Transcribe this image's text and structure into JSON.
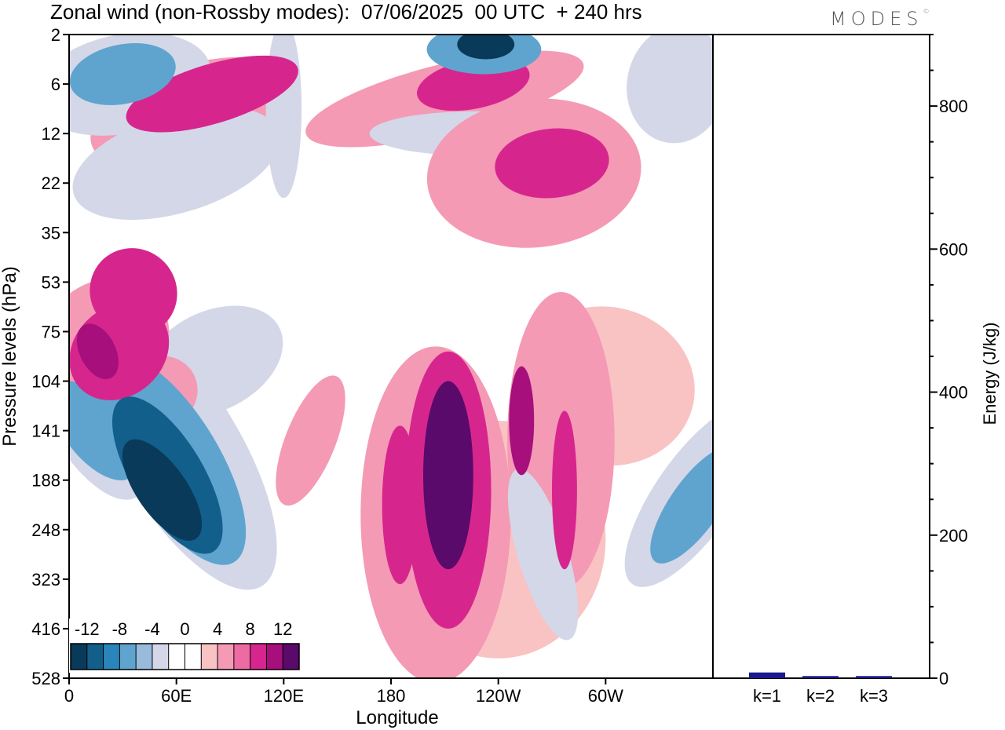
{
  "header": {
    "title": "Zonal wind (non-Rossby modes):  07/06/2025  00 UTC  + 240 hrs",
    "brand": "MODES",
    "brand_mark": "©"
  },
  "chart_data": [
    {
      "type": "heatmap",
      "title": "Zonal wind (non-Rossby modes):  07/06/2025  00 UTC  + 240 hrs",
      "xlabel": "Longitude",
      "ylabel": "Pressure levels (hPa)",
      "x_ticks": [
        "0",
        "60E",
        "120E",
        "180",
        "120W",
        "60W"
      ],
      "x_tick_positions_deg": [
        0,
        60,
        120,
        180,
        240,
        300
      ],
      "xlim": [
        0,
        360
      ],
      "y_ticks": [
        "2",
        "6",
        "12",
        "22",
        "35",
        "53",
        "75",
        "104",
        "141",
        "188",
        "248",
        "323",
        "416",
        "528"
      ],
      "y_scale": "level-index",
      "colorbar": {
        "labels": [
          "-12",
          "-8",
          "-4",
          "0",
          "4",
          "8",
          "12"
        ],
        "label_positions": [
          -12,
          -8,
          -4,
          0,
          4,
          8,
          12
        ],
        "range": [
          -14,
          14
        ],
        "step": 2,
        "colors": [
          "#0a3a5a",
          "#125f8c",
          "#2a86ba",
          "#5fa4cf",
          "#98bbdc",
          "#d3d7e8",
          "#ffffff",
          "#ffffff",
          "#f9c3c3",
          "#f49ab5",
          "#ee6aa3",
          "#d6268e",
          "#a60f7c",
          "#5a0a6a"
        ],
        "placement": "bottom-left inside"
      },
      "blobs": [
        {
          "lon": 52,
          "lev": 9.2,
          "value": -14,
          "rx": 14,
          "ry": 1.2,
          "tilt": 0.7
        },
        {
          "lon": 55,
          "lev": 8.9,
          "value": -12,
          "rx": 20,
          "ry": 1.8,
          "tilt": 0.6
        },
        {
          "lon": 58,
          "lev": 8.6,
          "value": -8,
          "rx": 26,
          "ry": 2.4,
          "tilt": 0.6
        },
        {
          "lon": 62,
          "lev": 8.4,
          "value": -4,
          "rx": 34,
          "ry": 3.2,
          "tilt": 0.6
        },
        {
          "lon": 80,
          "lev": 8.4,
          "value": -2,
          "rx": 14,
          "ry": 5.2,
          "tilt": 0.3
        },
        {
          "lon": 14,
          "lev": 8.0,
          "value": -8,
          "rx": 16,
          "ry": 1.2,
          "tilt": 0.8
        },
        {
          "lon": 12,
          "lev": 7.8,
          "value": -4,
          "rx": 22,
          "ry": 1.8,
          "tilt": 0.6
        },
        {
          "lon": 80,
          "lev": 6.6,
          "value": -4,
          "rx": 42,
          "ry": 1.0,
          "tilt": 0.5
        },
        {
          "lon": 28,
          "lev": 6.4,
          "value": 8,
          "rx": 30,
          "ry": 0.9,
          "tilt": 0.9
        },
        {
          "lon": 16,
          "lev": 6.4,
          "value": 10,
          "rx": 10,
          "ry": 0.6,
          "tilt": 0.5
        },
        {
          "lon": 52,
          "lev": 7.2,
          "value": 4,
          "rx": 20,
          "ry": 0.7,
          "tilt": 0.6
        },
        {
          "lon": 130,
          "lev": 6.4,
          "value": -2,
          "rx": 30,
          "ry": 1.0,
          "tilt": 0.2
        },
        {
          "lon": 214,
          "lev": 8.8,
          "value": 14,
          "rx": 8,
          "ry": 1.2,
          "tilt": 0
        },
        {
          "lon": 212,
          "lev": 8.9,
          "value": 12,
          "rx": 14,
          "ry": 1.9,
          "tilt": 0
        },
        {
          "lon": 212,
          "lev": 9.2,
          "value": 8,
          "rx": 24,
          "ry": 2.8,
          "tilt": 0
        },
        {
          "lon": 205,
          "lev": 9.7,
          "value": 4,
          "rx": 42,
          "ry": 3.4,
          "tilt": 0
        },
        {
          "lon": 185,
          "lev": 9.5,
          "value": 8,
          "rx": 10,
          "ry": 1.6,
          "tilt": 0
        },
        {
          "lon": 253,
          "lev": 7.8,
          "value": 10,
          "rx": 7,
          "ry": 1.1,
          "tilt": 0
        },
        {
          "lon": 277,
          "lev": 9.2,
          "value": 8,
          "rx": 7,
          "ry": 1.6,
          "tilt": 0
        },
        {
          "lon": 275,
          "lev": 8.2,
          "value": 4,
          "rx": 30,
          "ry": 3.0,
          "tilt": 0
        },
        {
          "lon": 240,
          "lev": 10.2,
          "value": 2,
          "rx": 60,
          "ry": 2.4,
          "tilt": 0
        },
        {
          "lon": 135,
          "lev": 8.2,
          "value": 4,
          "rx": 14,
          "ry": 1.4,
          "tilt": -0.4
        },
        {
          "lon": 300,
          "lev": 7.1,
          "value": 2,
          "rx": 50,
          "ry": 1.6,
          "tilt": -0.2
        },
        {
          "lon": 350,
          "lev": 9.5,
          "value": -8,
          "rx": 14,
          "ry": 1.4,
          "tilt": -0.7
        },
        {
          "lon": 350,
          "lev": 9.3,
          "value": -4,
          "rx": 22,
          "ry": 2.2,
          "tilt": -0.7
        },
        {
          "lon": 265,
          "lev": 10.5,
          "value": -4,
          "rx": 14,
          "ry": 1.8,
          "tilt": 0.3
        },
        {
          "lon": 36,
          "lev": 5.2,
          "value": 8,
          "rx": 24,
          "ry": 0.9,
          "tilt": 0.9
        },
        {
          "lon": 20,
          "lev": 6.2,
          "value": 4,
          "rx": 38,
          "ry": 1.2,
          "tilt": 0.9
        },
        {
          "lon": 226,
          "lev": 1.0,
          "value": 8,
          "rx": 32,
          "ry": 0.5,
          "tilt": 0.2
        },
        {
          "lon": 210,
          "lev": 1.3,
          "value": 4,
          "rx": 80,
          "ry": 0.7,
          "tilt": 0.25
        },
        {
          "lon": 233,
          "lev": 0.2,
          "value": -14,
          "rx": 16,
          "ry": 0.3,
          "tilt": 0
        },
        {
          "lon": 232,
          "lev": 0.3,
          "value": -8,
          "rx": 32,
          "ry": 0.5,
          "tilt": 0
        },
        {
          "lon": 228,
          "lev": 2.0,
          "value": -4,
          "rx": 60,
          "ry": 0.45,
          "tilt": 0
        },
        {
          "lon": 260,
          "lev": 2.8,
          "value": 4,
          "rx": 60,
          "ry": 1.5,
          "tilt": 0.1
        },
        {
          "lon": 270,
          "lev": 2.6,
          "value": 8,
          "rx": 32,
          "ry": 0.7,
          "tilt": 0.1
        },
        {
          "lon": 80,
          "lev": 1.2,
          "value": 8,
          "rx": 50,
          "ry": 0.6,
          "tilt": 0.3
        },
        {
          "lon": 70,
          "lev": 1.6,
          "value": 4,
          "rx": 60,
          "ry": 1.0,
          "tilt": 0.3
        },
        {
          "lon": 30,
          "lev": 0.8,
          "value": -8,
          "rx": 30,
          "ry": 0.6,
          "tilt": 0.2
        },
        {
          "lon": 30,
          "lev": 1.0,
          "value": -4,
          "rx": 50,
          "ry": 1.0,
          "tilt": 0.2
        },
        {
          "lon": 60,
          "lev": 2.6,
          "value": -4,
          "rx": 60,
          "ry": 1.0,
          "tilt": 0.3
        },
        {
          "lon": 120,
          "lev": 1.5,
          "value": -4,
          "rx": 10,
          "ry": 1.8,
          "tilt": 0
        },
        {
          "lon": 340,
          "lev": 1.0,
          "value": -4,
          "rx": 28,
          "ry": 1.2,
          "tilt": -0.2
        },
        {
          "lon": 130,
          "lev": 11.8,
          "value": -2,
          "rx": 70,
          "ry": 1.6,
          "tilt": 0.6
        }
      ]
    },
    {
      "type": "bar",
      "categories": [
        "k=1",
        "k=2",
        "k=3"
      ],
      "values": [
        8,
        3,
        3
      ],
      "ylabel": "Energy (J/kg)",
      "y_ticks": [
        "0",
        "200",
        "400",
        "600",
        "800"
      ],
      "ylim": [
        0,
        900
      ],
      "bar_color": "#1a1a8c",
      "axis_side": "right"
    }
  ]
}
